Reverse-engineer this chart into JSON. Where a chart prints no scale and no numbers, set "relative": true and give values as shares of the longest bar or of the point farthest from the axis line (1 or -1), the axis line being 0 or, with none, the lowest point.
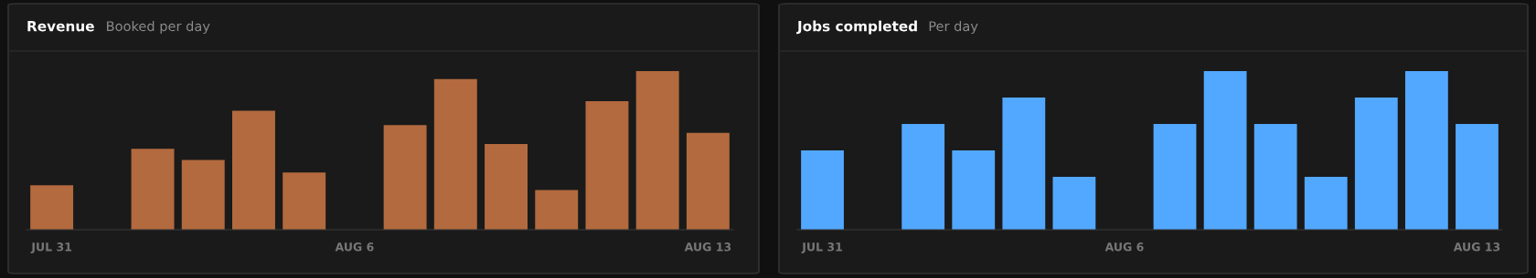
{
  "chart_data": [
    {
      "type": "bar",
      "title": "Revenue",
      "subtitle": "Booked per day",
      "relative": true,
      "color": "#b36a3e",
      "categories": [
        "JUL 31",
        null,
        null,
        null,
        null,
        null,
        "AUG 6",
        null,
        null,
        null,
        null,
        null,
        null,
        "AUG 13"
      ],
      "values": [
        0.28,
        0,
        0.51,
        0.44,
        0.75,
        0.36,
        0,
        0.66,
        0.95,
        0.54,
        0.25,
        0.81,
        1,
        0.61
      ]
    },
    {
      "type": "bar",
      "title": "Jobs completed",
      "subtitle": "Per day",
      "relative": true,
      "color": "#52a8ff",
      "categories": [
        "JUL 31",
        null,
        null,
        null,
        null,
        null,
        "AUG 6",
        null,
        null,
        null,
        null,
        null,
        null,
        "AUG 13"
      ],
      "values": [
        0.5,
        0,
        0.667,
        0.5,
        0.833,
        0.333,
        0,
        0.667,
        1,
        0.667,
        0.333,
        0.833,
        1,
        0.667
      ]
    }
  ]
}
